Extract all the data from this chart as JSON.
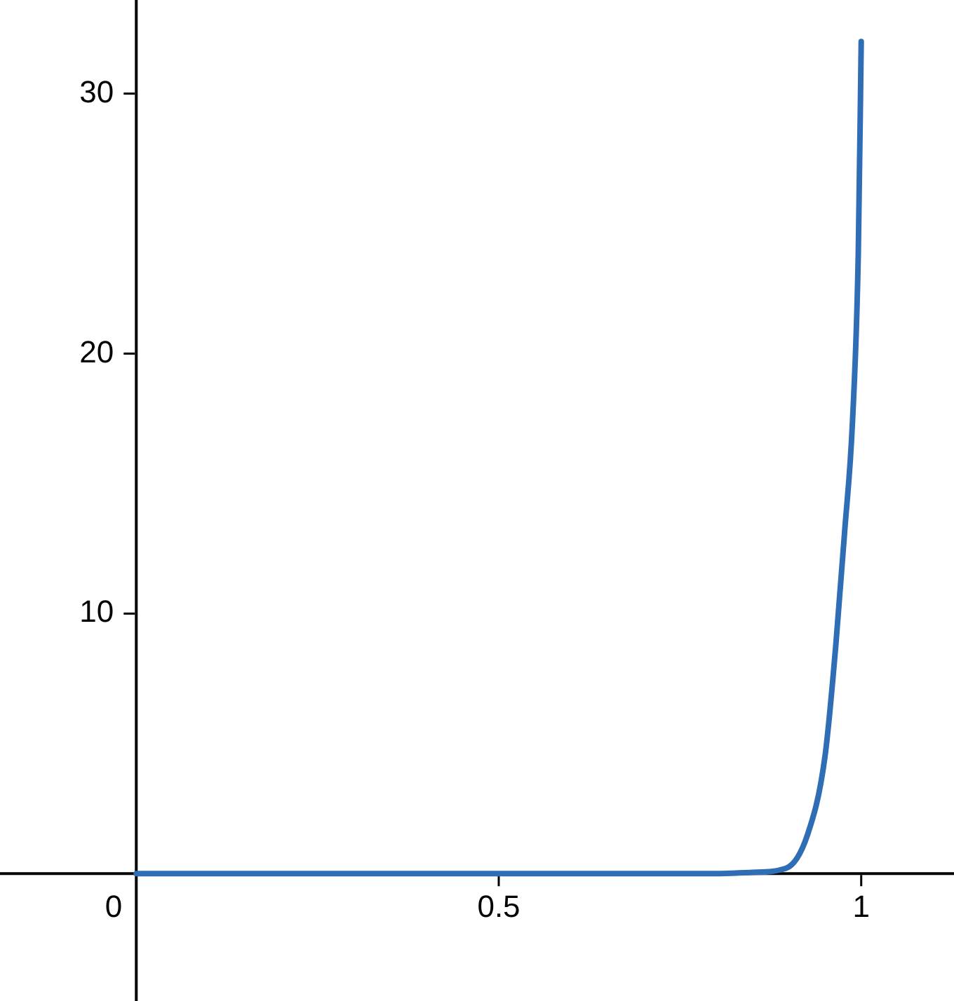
{
  "chart_data": {
    "type": "line",
    "x": [
      0,
      0.5,
      0.8,
      0.85,
      0.896,
      0.926,
      0.95,
      0.965,
      0.977,
      0.988,
      0.996,
      1
    ],
    "series": [
      {
        "color": "#2f6eb5",
        "values": [
          0,
          0,
          0,
          0.05,
          0.2,
          1.5,
          4.5,
          8.8,
          13.1,
          17.4,
          23.9,
          32
        ]
      }
    ],
    "xlim": [
      -0.188,
      1.128
    ],
    "ylim": [
      -4.9,
      33.6
    ],
    "xticks": [
      0,
      0.5,
      1
    ],
    "yticks": [
      10,
      20,
      30
    ],
    "grid": false,
    "legend": false,
    "marker": "none",
    "line_style": "solid"
  }
}
